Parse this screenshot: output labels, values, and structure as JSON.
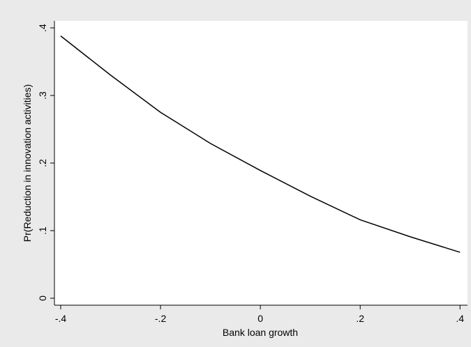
{
  "chart_data": {
    "type": "line",
    "x_label": "Bank loan growth",
    "y_label": "Pr(Reduction in innovation activities)",
    "x": [
      -0.4,
      -0.3,
      -0.2,
      -0.1,
      0,
      0.1,
      0.2,
      0.3,
      0.4
    ],
    "series": [
      {
        "color": "#000000",
        "values": [
          0.388,
          0.33,
          0.275,
          0.229,
          0.189,
          0.151,
          0.116,
          0.091,
          0.068
        ]
      }
    ],
    "xlim": [
      -0.4126,
      0.415
    ],
    "ylim": [
      -0.0103,
      0.4103
    ],
    "xticks": [
      {
        "value": -0.4,
        "label": "-.4"
      },
      {
        "value": -0.2,
        "label": "-.2"
      },
      0,
      {
        "value": 0.2,
        "label": ".2"
      },
      {
        "value": 0.4,
        "label": ".4"
      }
    ],
    "yticks": [
      0,
      {
        "value": 0.1,
        "label": ".1"
      },
      {
        "value": 0.2,
        "label": ".2"
      },
      {
        "value": 0.3,
        "label": ".3"
      },
      {
        "value": 0.4,
        "label": ".4"
      }
    ]
  }
}
